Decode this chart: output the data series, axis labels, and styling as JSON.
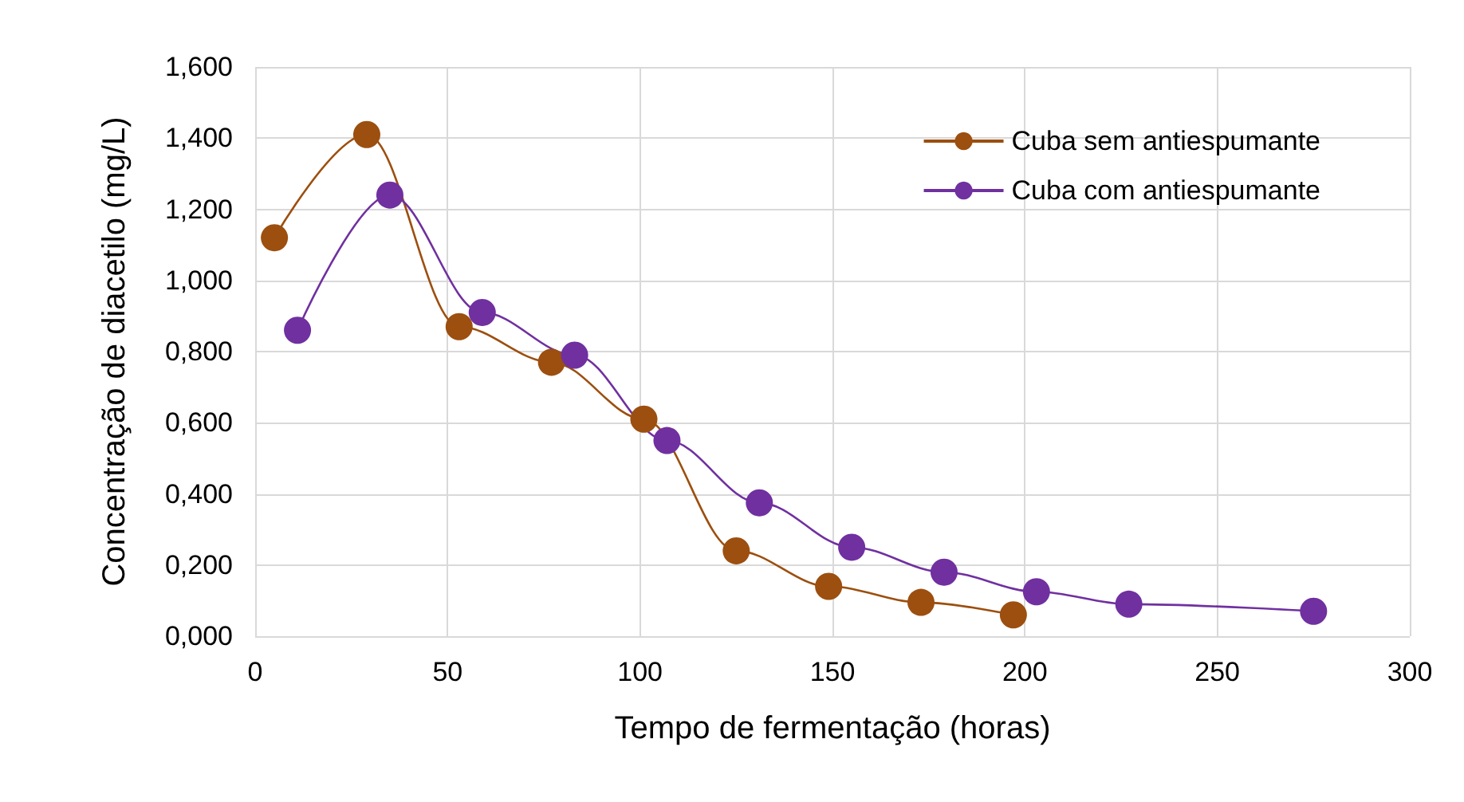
{
  "chart_data": {
    "type": "line",
    "xlabel": "Tempo de fermentação (horas)",
    "ylabel": "Concentração de diacetilo (mg/L)",
    "xlim": [
      0,
      300
    ],
    "xticks": [
      0,
      50,
      100,
      150,
      200,
      250,
      300
    ],
    "ylim": [
      0,
      1.6
    ],
    "yticks": [
      {
        "value": 0,
        "label": "0,000"
      },
      {
        "value": 0.2,
        "label": "0,200"
      },
      {
        "value": 0.4,
        "label": "0,400"
      },
      {
        "value": 0.6,
        "label": "0,600"
      },
      {
        "value": 0.8,
        "label": "0,800"
      },
      {
        "value": 1.0,
        "label": "1,000"
      },
      {
        "value": 1.2,
        "label": "1,200"
      },
      {
        "value": 1.4,
        "label": "1,400"
      },
      {
        "value": 1.6,
        "label": "1,600"
      }
    ],
    "grid": true,
    "legend": "top right",
    "marker": "circle",
    "line_style": "solid",
    "series": [
      {
        "name": "Cuba sem antiespumante",
        "color": "#9c4f0f",
        "x": [
          5,
          29,
          53,
          77,
          101,
          125,
          149,
          173,
          197
        ],
        "values": [
          1.12,
          1.41,
          0.87,
          0.77,
          0.61,
          0.24,
          0.14,
          0.095,
          0.06
        ]
      },
      {
        "name": "Cuba com antiespumante",
        "color": "#7030a0",
        "x": [
          11,
          35,
          59,
          83,
          107,
          131,
          155,
          179,
          203,
          227,
          275
        ],
        "values": [
          0.86,
          1.24,
          0.91,
          0.79,
          0.55,
          0.375,
          0.25,
          0.18,
          0.125,
          0.09,
          0.07
        ]
      }
    ]
  }
}
